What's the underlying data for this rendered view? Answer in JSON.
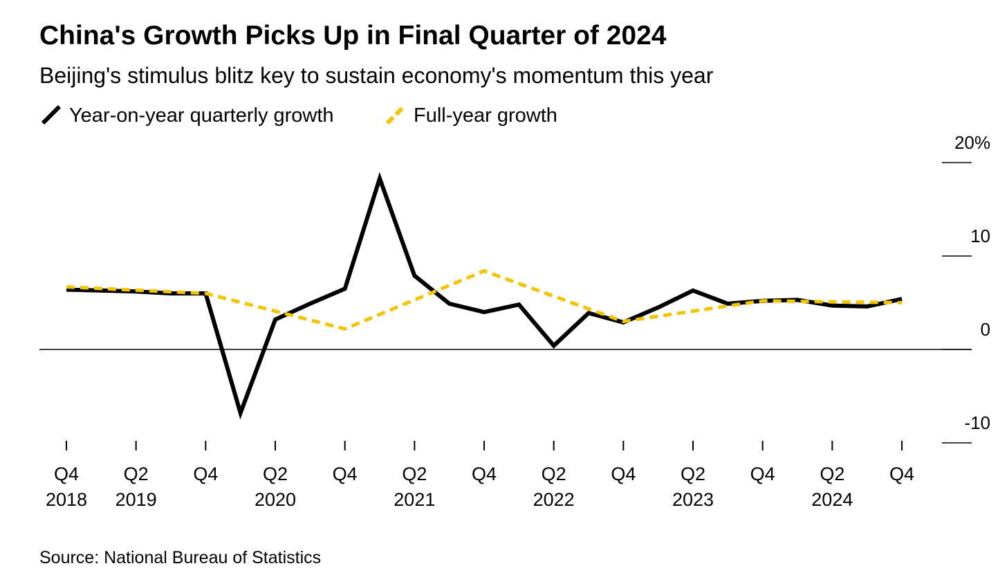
{
  "chart_data": {
    "type": "line",
    "title": "China's Growth Picks Up in Final Quarter of 2024",
    "subtitle": "Beijing's stimulus blitz key to sustain economy's momentum this year",
    "source": "Source: National Bureau of Statistics",
    "categories": [
      "Q4",
      null,
      "Q2",
      null,
      "Q4",
      null,
      "Q2",
      null,
      "Q4",
      null,
      "Q2",
      null,
      "Q4",
      null,
      "Q2",
      null,
      "Q4",
      null,
      "Q2",
      null,
      "Q4",
      null,
      "Q2",
      null,
      "Q4"
    ],
    "category_years": [
      "2018",
      null,
      "2019",
      null,
      null,
      null,
      "2020",
      null,
      null,
      null,
      "2021",
      null,
      null,
      null,
      "2022",
      null,
      null,
      null,
      "2023",
      null,
      null,
      null,
      "2024",
      null,
      null
    ],
    "series": [
      {
        "name": "Year-on-year quarterly growth",
        "color": "#000000",
        "dashed": false,
        "values": [
          6.4,
          6.3,
          6.2,
          6.0,
          6.0,
          -6.8,
          3.2,
          4.9,
          6.5,
          18.3,
          7.9,
          4.9,
          4.0,
          4.8,
          0.4,
          3.9,
          2.9,
          4.5,
          6.3,
          4.9,
          5.2,
          5.3,
          4.7,
          4.6,
          5.4
        ]
      },
      {
        "name": "Full-year growth",
        "color": "#f5c400",
        "dashed": true,
        "x": [
          0,
          4,
          8,
          12,
          16,
          20,
          24
        ],
        "values": [
          6.7,
          6.0,
          2.2,
          8.4,
          3.0,
          5.2,
          5.0
        ]
      }
    ],
    "ylim": [
      -10,
      20
    ],
    "yticks": [
      -10,
      0,
      10,
      {
        "value": 20,
        "label": "20%"
      }
    ]
  }
}
